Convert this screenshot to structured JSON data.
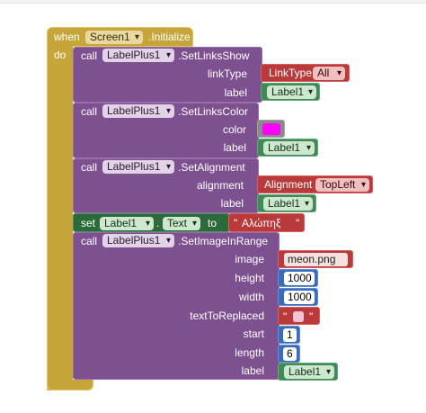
{
  "colors": {
    "event": "#c6a63a",
    "procedure": "#7d5090",
    "text_red": "#b83a3a",
    "component_green": "#3f8a57",
    "math_blue": "#3b6cbb",
    "swatch": "#ff00ff"
  },
  "event": {
    "when": "when",
    "component": "Screen1",
    "event_name": ".Initialize",
    "do": "do"
  },
  "block1": {
    "call": "call",
    "component": "LabelPlus1",
    "method": ".SetLinksShow",
    "arg1_name": "linkType",
    "arg1_getter": "LinkType",
    "arg1_value": "All",
    "arg2_name": "label",
    "arg2_value": "Label1"
  },
  "block2": {
    "call": "call",
    "component": "LabelPlus1",
    "method": ".SetLinksColor",
    "arg1_name": "color",
    "arg2_name": "label",
    "arg2_value": "Label1"
  },
  "block3": {
    "call": "call",
    "component": "LabelPlus1",
    "method": ".SetAlignment",
    "arg1_name": "alignment",
    "arg1_getter": "Alignment",
    "arg1_value": "TopLeft",
    "arg2_name": "label",
    "arg2_value": "Label1"
  },
  "setblock": {
    "set": "set",
    "component": "Label1",
    "dot": ".",
    "property": "Text",
    "to": "to",
    "text_value": "Αλώπηξ",
    "quote": "\""
  },
  "block4": {
    "call": "call",
    "component": "LabelPlus1",
    "method": ".SetImageInRange",
    "image_name": "image",
    "image_value": "meon.png",
    "height_name": "height",
    "height_value": "1000",
    "width_name": "width",
    "width_value": "1000",
    "replace_name": "textToReplaced",
    "start_name": "start",
    "start_value": "1",
    "length_name": "length",
    "length_value": "6",
    "label_name": "label",
    "label_value": "Label1"
  }
}
